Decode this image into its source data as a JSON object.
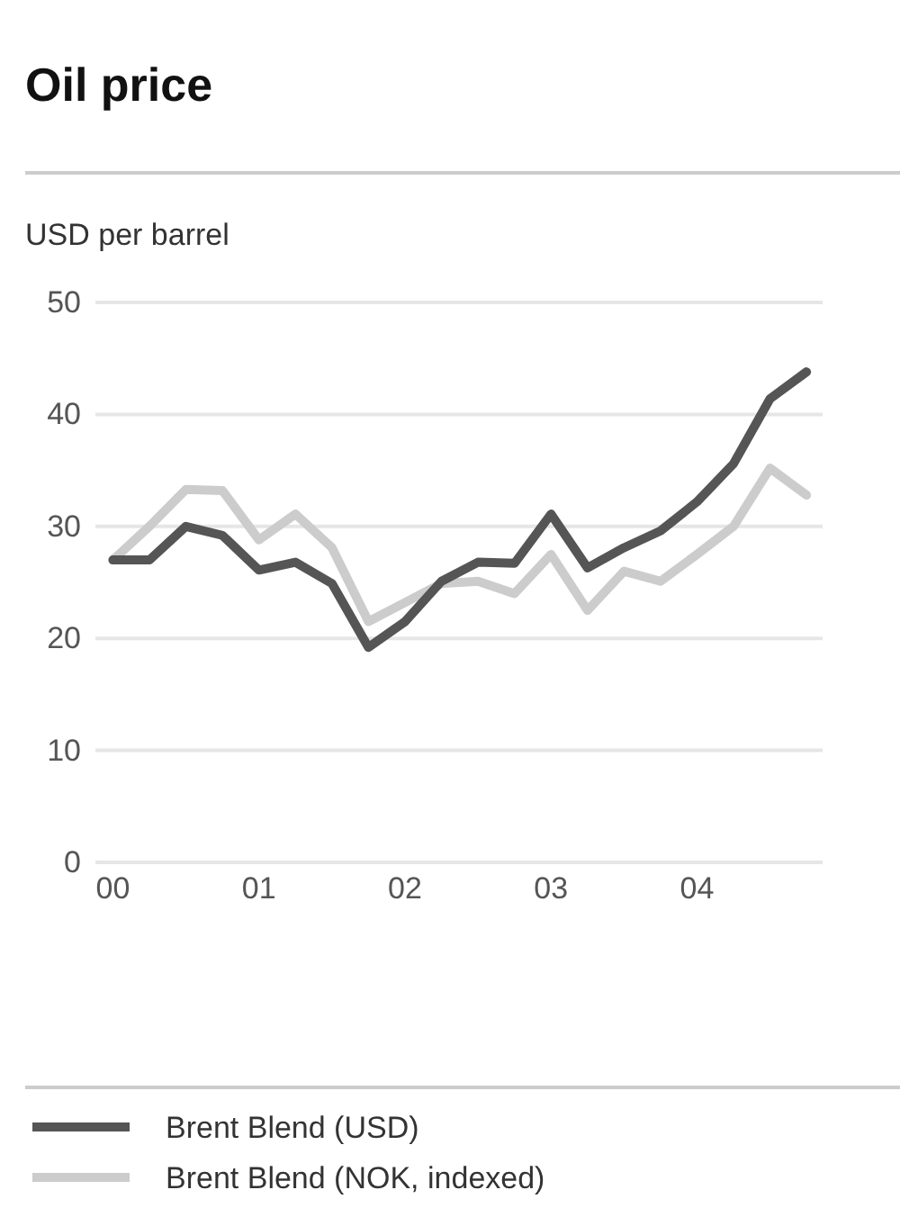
{
  "chart_data": {
    "type": "line",
    "title": "Oil price",
    "ylabel": "USD per barrel",
    "x": [
      2000,
      2000.25,
      2000.5,
      2000.75,
      2001,
      2001.25,
      2001.5,
      2001.75,
      2002,
      2002.25,
      2002.5,
      2002.75,
      2003,
      2003.25,
      2003.5,
      2003.75,
      2004,
      2004.25,
      2004.5,
      2004.75
    ],
    "series": [
      {
        "name": "Brent Blend (USD)",
        "color": "#555555",
        "values": [
          27.0,
          27.0,
          30.0,
          29.2,
          26.1,
          26.8,
          24.9,
          19.2,
          21.5,
          25.1,
          26.8,
          26.7,
          31.1,
          26.3,
          28.1,
          29.6,
          32.2,
          35.6,
          41.4,
          43.8
        ]
      },
      {
        "name": "Brent Blend (NOK, indexed)",
        "color": "#cccccc",
        "values": [
          27.0,
          30.0,
          33.3,
          33.2,
          28.8,
          31.1,
          28.1,
          21.5,
          23.2,
          24.9,
          25.1,
          24.0,
          27.5,
          22.5,
          26.0,
          25.1,
          27.5,
          30.0,
          35.2,
          32.8
        ]
      }
    ],
    "xlim": [
      1999.88,
      2004.86
    ],
    "xticks": [
      {
        "value": 2000,
        "label": "00"
      },
      {
        "value": 2001,
        "label": "01"
      },
      {
        "value": 2002,
        "label": "02"
      },
      {
        "value": 2003,
        "label": "03"
      },
      {
        "value": 2004,
        "label": "04"
      }
    ],
    "ylim": [
      0,
      50
    ],
    "yticks": [
      0,
      10,
      20,
      30,
      40,
      50
    ],
    "grid": "y",
    "legend": "bottom",
    "marker": "none",
    "line_style": "solid"
  }
}
